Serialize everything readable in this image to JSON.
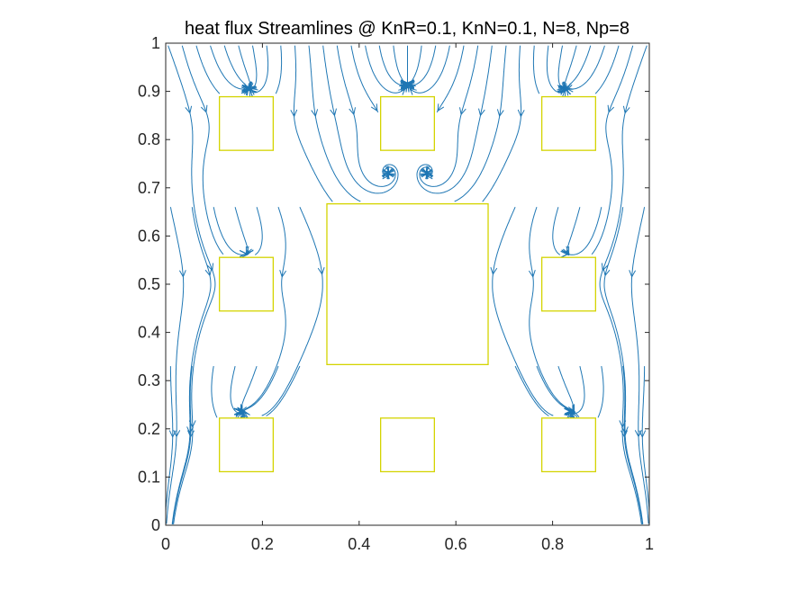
{
  "chart_data": {
    "type": "streamline",
    "title": "heat flux Streamlines @ KnR=0.1, KnN=0.1, N=8, Np=8",
    "xlabel": "",
    "ylabel": "",
    "xlim": [
      0,
      1
    ],
    "ylim": [
      0,
      1
    ],
    "xticks": [
      "0",
      "0.2",
      "0.4",
      "0.6",
      "0.8",
      "1"
    ],
    "xtick_values": [
      0,
      0.2,
      0.4,
      0.6,
      0.8,
      1
    ],
    "yticks": [
      "0",
      "0.1",
      "0.2",
      "0.3",
      "0.4",
      "0.5",
      "0.6",
      "0.7",
      "0.8",
      "0.9",
      "1"
    ],
    "ytick_values": [
      0,
      0.1,
      0.2,
      0.3,
      0.4,
      0.5,
      0.6,
      0.7,
      0.8,
      0.9,
      1
    ],
    "grid": false,
    "obstacles": [
      {
        "center": [
          0.5,
          0.5
        ],
        "half_width": 0.1667
      },
      {
        "center": [
          0.1667,
          0.8333
        ],
        "half_width": 0.0556
      },
      {
        "center": [
          0.5,
          0.8333
        ],
        "half_width": 0.0556
      },
      {
        "center": [
          0.8333,
          0.8333
        ],
        "half_width": 0.0556
      },
      {
        "center": [
          0.1667,
          0.5
        ],
        "half_width": 0.0556
      },
      {
        "center": [
          0.8333,
          0.5
        ],
        "half_width": 0.0556
      },
      {
        "center": [
          0.1667,
          0.1667
        ],
        "half_width": 0.0556
      },
      {
        "center": [
          0.5,
          0.1667
        ],
        "half_width": 0.0556
      },
      {
        "center": [
          0.8333,
          0.1667
        ],
        "half_width": 0.0556
      }
    ],
    "flow_direction": "top-to-bottom",
    "colors": {
      "streamline": "#1f77b4",
      "obstacle_edge": "#d4d400",
      "axes": "#262626"
    }
  }
}
